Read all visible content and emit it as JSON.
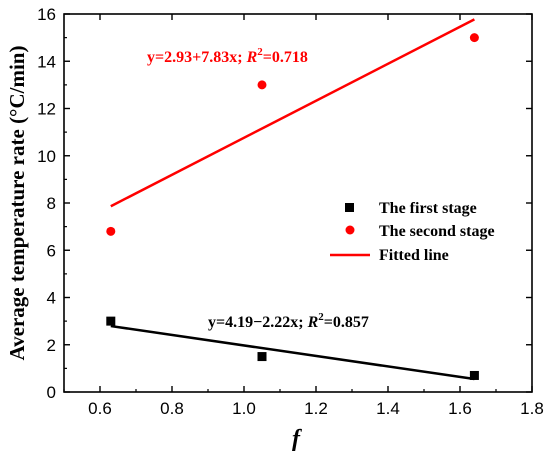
{
  "chart_data": {
    "type": "scatter",
    "xlabel": "f",
    "ylabel": "Average temperature rate (°C/min)",
    "xlim": [
      0.5,
      1.8
    ],
    "ylim": [
      0,
      16
    ],
    "xticks": [
      "0.6",
      "0.8",
      "1.0",
      "1.2",
      "1.4",
      "1.6",
      "1.8"
    ],
    "yticks": [
      "0",
      "2",
      "4",
      "6",
      "8",
      "10",
      "12",
      "14",
      "16"
    ],
    "grid": false,
    "legend_position": "right",
    "series": [
      {
        "name": "The first stage",
        "marker": "square",
        "color": "#000000",
        "points": [
          {
            "x": 0.63,
            "y": 3.0
          },
          {
            "x": 1.05,
            "y": 1.5
          },
          {
            "x": 1.64,
            "y": 0.7
          }
        ]
      },
      {
        "name": "The second stage",
        "marker": "circle",
        "color": "#ff0000",
        "points": [
          {
            "x": 0.63,
            "y": 6.8
          },
          {
            "x": 1.05,
            "y": 13.0
          },
          {
            "x": 1.64,
            "y": 15.0
          }
        ]
      }
    ],
    "fit_lines": [
      {
        "series": "The first stage",
        "color": "#000000",
        "intercept": 4.19,
        "slope": -2.22,
        "x_range": [
          0.63,
          1.64
        ],
        "equation": "y=4.19−2.22x; ",
        "r2_label": "R",
        "r2_sup": "2",
        "r2_value": "=0.857"
      },
      {
        "series": "The second stage",
        "color": "#ff0000",
        "intercept": 2.93,
        "slope": 7.83,
        "x_range": [
          0.63,
          1.64
        ],
        "equation": "y=2.93+7.83x; ",
        "r2_label": "R",
        "r2_sup": "2",
        "r2_value": "=0.718"
      }
    ],
    "legend": {
      "items": [
        {
          "label": "The first stage",
          "symbol": "square",
          "color": "#000000"
        },
        {
          "label": "The second stage",
          "symbol": "circle",
          "color": "#ff0000"
        },
        {
          "label": "Fitted line",
          "symbol": "line",
          "color": "#ff0000"
        }
      ]
    }
  }
}
